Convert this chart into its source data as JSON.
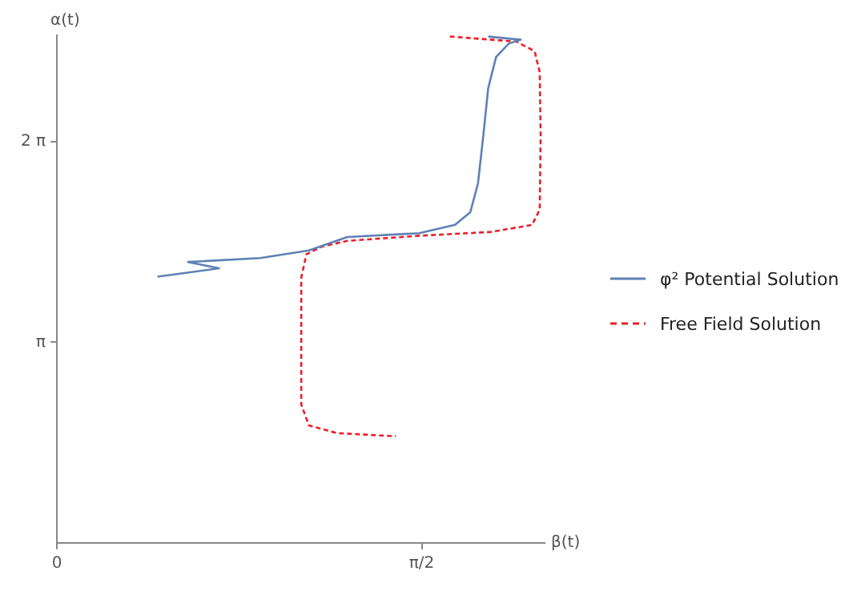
{
  "chart_data": {
    "type": "line",
    "xlabel": "β(t)",
    "ylabel": "α(t)",
    "xlim": [
      0,
      2.1
    ],
    "ylim": [
      0,
      7.95
    ],
    "xticks": [
      0,
      {
        "value": 1.5708,
        "label": "π/2"
      }
    ],
    "yticks": [
      {
        "value": 3.1416,
        "label": "π"
      },
      {
        "value": 6.2832,
        "label": "2 π"
      }
    ],
    "grid": false,
    "legend": "right",
    "marker": "none",
    "series": [
      {
        "name": "φ² Potential Solution",
        "color": "#5e81b5",
        "line_style": "solid",
        "x": [
          0.433,
          0.698,
          0.565,
          0.875,
          1.085,
          1.25,
          1.559,
          1.714,
          1.78,
          1.813,
          1.836,
          1.857,
          1.891,
          1.946,
          1.997,
          1.857
        ],
        "values": [
          4.17,
          4.3,
          4.4,
          4.46,
          4.58,
          4.79,
          4.85,
          4.98,
          5.18,
          5.63,
          6.38,
          7.12,
          7.61,
          7.82,
          7.88,
          7.93
        ]
      },
      {
        "name": "Free Field Solution",
        "color": "#e8202a",
        "line_style": "dashed",
        "x": [
          1.692,
          1.979,
          2.057,
          2.079,
          2.083,
          2.079,
          2.046,
          1.869,
          1.559,
          1.25,
          1.14,
          1.074,
          1.052,
          1.052,
          1.085,
          1.206,
          1.46
        ],
        "values": [
          7.93,
          7.85,
          7.7,
          7.37,
          6.38,
          5.22,
          4.98,
          4.87,
          4.81,
          4.73,
          4.64,
          4.52,
          4.15,
          2.17,
          1.84,
          1.72,
          1.67
        ]
      }
    ]
  }
}
